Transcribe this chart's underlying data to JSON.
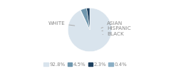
{
  "slices": [
    {
      "label": "WHITE",
      "value": 92.8,
      "color": "#d9e4ed"
    },
    {
      "label": "ASIAN",
      "value": 0.4,
      "color": "#8cafc5"
    },
    {
      "label": "HISPANIC",
      "value": 4.5,
      "color": "#7097ae"
    },
    {
      "label": "BLACK",
      "value": 2.3,
      "color": "#1d3f5e"
    }
  ],
  "legend": [
    {
      "label": "92.8%",
      "color": "#d9e4ed"
    },
    {
      "label": "4.5%",
      "color": "#7097ae"
    },
    {
      "label": "2.3%",
      "color": "#1d3f5e"
    },
    {
      "label": "0.4%",
      "color": "#8cafc5"
    }
  ],
  "text_color": "#888888",
  "line_color": "#aaaaaa",
  "label_fontsize": 5.2,
  "legend_fontsize": 5.0,
  "startangle": 90
}
